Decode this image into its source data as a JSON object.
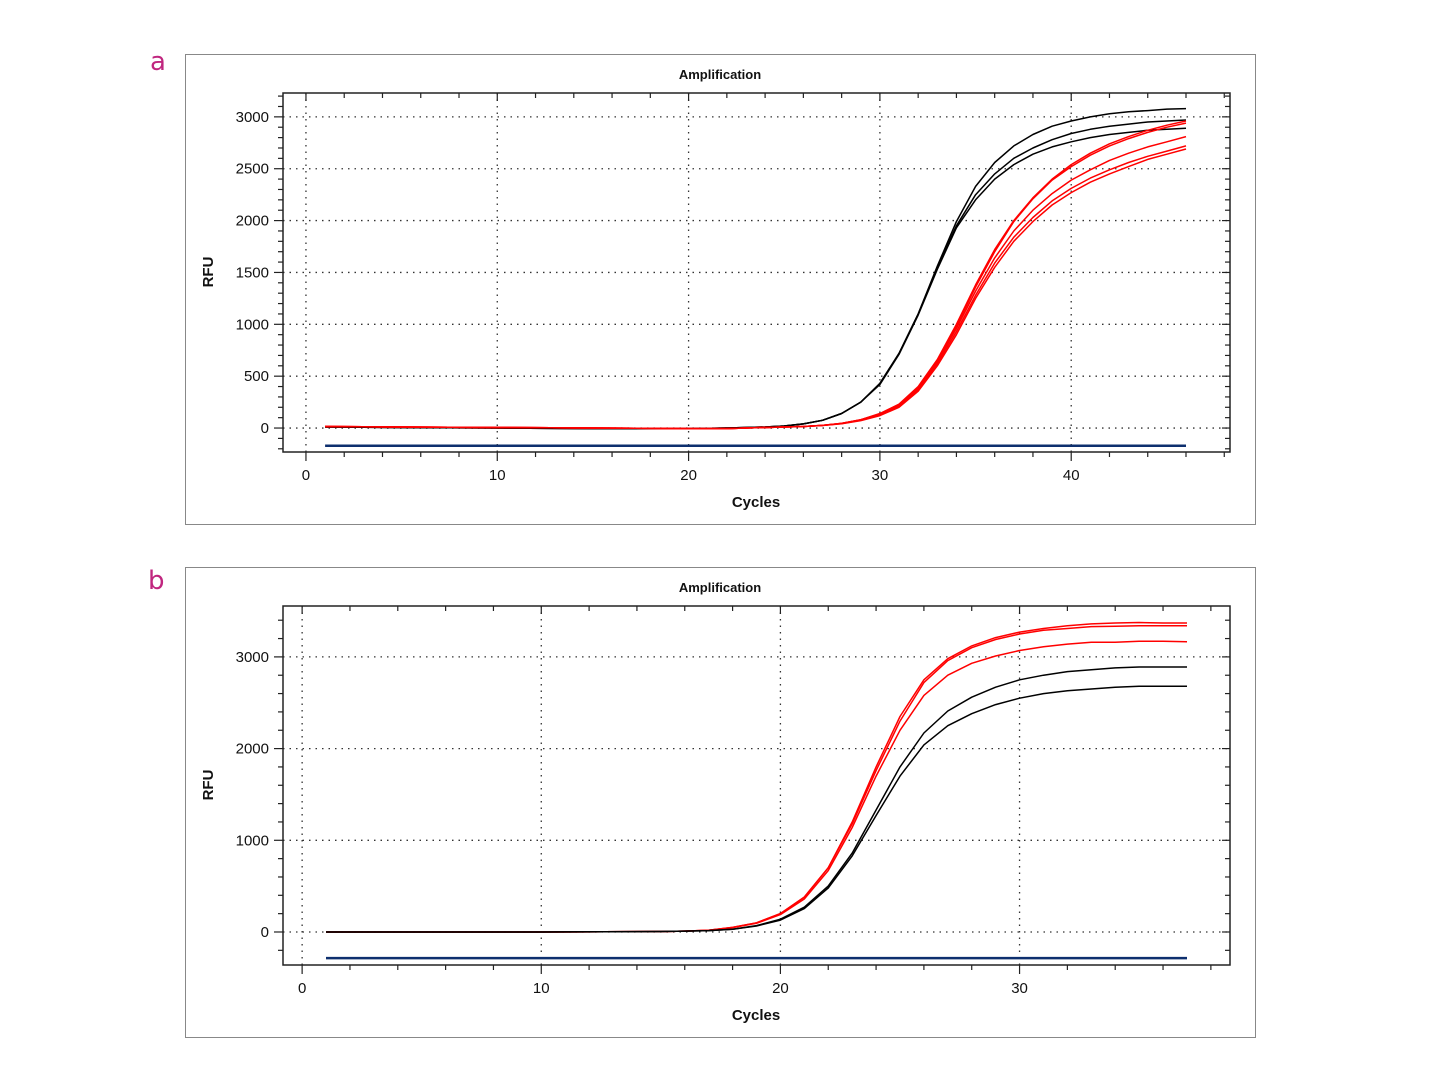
{
  "colors": {
    "panel_letter": "#c0267f",
    "black_series": "#000000",
    "red_series": "#ff0000",
    "baseline": "#0d2f6e"
  },
  "chart_data": [
    {
      "panel": "a",
      "type": "line",
      "title": "Amplification",
      "xlabel": "Cycles",
      "ylabel": "RFU",
      "xlim": [
        -1.2,
        48.3
      ],
      "ylim": [
        -231,
        3230
      ],
      "xticks": [
        0,
        10,
        20,
        30,
        40
      ],
      "yticks": [
        0,
        500,
        1000,
        1500,
        2000,
        2500,
        3000
      ],
      "x_minor_step": 2,
      "y_minor_step": 100,
      "grid": true,
      "x": [
        1,
        5,
        10,
        15,
        20,
        22,
        23,
        24,
        25,
        26,
        27,
        28,
        29,
        30,
        31,
        32,
        33,
        34,
        35,
        36,
        37,
        38,
        39,
        40,
        41,
        42,
        43,
        44,
        45,
        46
      ],
      "series": [
        {
          "color": "#000000",
          "values": [
            10,
            5,
            0,
            -5,
            -5,
            0,
            5,
            10,
            20,
            40,
            75,
            140,
            250,
            430,
            720,
            1100,
            1560,
            1990,
            2330,
            2560,
            2720,
            2830,
            2910,
            2960,
            3000,
            3030,
            3050,
            3060,
            3075,
            3080
          ]
        },
        {
          "color": "#000000",
          "values": [
            10,
            5,
            0,
            -5,
            -5,
            0,
            5,
            10,
            20,
            40,
            75,
            140,
            250,
            430,
            720,
            1100,
            1550,
            1950,
            2250,
            2450,
            2600,
            2700,
            2780,
            2840,
            2880,
            2910,
            2930,
            2950,
            2960,
            2970
          ]
        },
        {
          "color": "#000000",
          "values": [
            10,
            5,
            0,
            -5,
            -5,
            0,
            5,
            10,
            20,
            40,
            75,
            140,
            250,
            420,
            710,
            1090,
            1530,
            1930,
            2200,
            2400,
            2540,
            2640,
            2710,
            2760,
            2800,
            2830,
            2850,
            2870,
            2880,
            2890
          ]
        },
        {
          "color": "#ff0000",
          "values": [
            15,
            10,
            5,
            0,
            -5,
            -5,
            0,
            5,
            10,
            15,
            25,
            45,
            80,
            140,
            230,
            400,
            660,
            1000,
            1380,
            1720,
            2000,
            2220,
            2400,
            2540,
            2650,
            2740,
            2810,
            2870,
            2920,
            2960
          ]
        },
        {
          "color": "#ff0000",
          "values": [
            15,
            10,
            5,
            0,
            -5,
            -5,
            0,
            5,
            10,
            15,
            25,
            45,
            80,
            135,
            225,
            390,
            650,
            980,
            1360,
            1700,
            1990,
            2210,
            2390,
            2520,
            2630,
            2720,
            2790,
            2850,
            2900,
            2940
          ]
        },
        {
          "color": "#ff0000",
          "values": [
            15,
            10,
            5,
            0,
            -5,
            -5,
            0,
            5,
            10,
            15,
            25,
            45,
            78,
            130,
            220,
            380,
            640,
            960,
            1320,
            1640,
            1900,
            2100,
            2260,
            2390,
            2490,
            2580,
            2650,
            2710,
            2760,
            2810
          ]
        },
        {
          "color": "#ff0000",
          "values": [
            15,
            10,
            5,
            0,
            -5,
            -5,
            0,
            5,
            10,
            15,
            25,
            43,
            75,
            125,
            210,
            370,
            620,
            930,
            1280,
            1590,
            1840,
            2030,
            2190,
            2310,
            2410,
            2490,
            2560,
            2620,
            2670,
            2720
          ]
        },
        {
          "color": "#ff0000",
          "values": [
            15,
            10,
            5,
            0,
            -5,
            -5,
            0,
            5,
            10,
            15,
            24,
            42,
            72,
            120,
            200,
            355,
            600,
            900,
            1250,
            1550,
            1800,
            1990,
            2150,
            2270,
            2370,
            2450,
            2520,
            2590,
            2640,
            2690
          ]
        },
        {
          "color": "#0d2f6e",
          "x": [
            1,
            46
          ],
          "values": [
            -170,
            -170
          ]
        }
      ]
    },
    {
      "panel": "b",
      "type": "line",
      "title": "Amplification",
      "xlabel": "Cycles",
      "ylabel": "RFU",
      "xlim": [
        -0.8,
        38.8
      ],
      "ylim": [
        -360,
        3555
      ],
      "xticks": [
        0,
        10,
        20,
        30
      ],
      "yticks": [
        0,
        1000,
        2000,
        3000
      ],
      "x_minor_step": 2,
      "y_minor_step": 200,
      "grid": true,
      "x": [
        1,
        5,
        10,
        15,
        16,
        17,
        18,
        19,
        20,
        21,
        22,
        23,
        24,
        25,
        26,
        27,
        28,
        29,
        30,
        31,
        32,
        33,
        34,
        35,
        36,
        37
      ],
      "series": [
        {
          "color": "#ff0000",
          "values": [
            0,
            0,
            0,
            5,
            10,
            20,
            50,
            100,
            200,
            380,
            700,
            1200,
            1800,
            2350,
            2750,
            2980,
            3120,
            3210,
            3270,
            3310,
            3340,
            3360,
            3370,
            3375,
            3370,
            3370
          ]
        },
        {
          "color": "#ff0000",
          "values": [
            0,
            0,
            0,
            5,
            10,
            20,
            50,
            100,
            200,
            380,
            700,
            1180,
            1760,
            2300,
            2720,
            2960,
            3100,
            3190,
            3250,
            3290,
            3310,
            3330,
            3335,
            3340,
            3340,
            3340
          ]
        },
        {
          "color": "#ff0000",
          "values": [
            0,
            0,
            0,
            5,
            10,
            20,
            48,
            95,
            190,
            360,
            670,
            1140,
            1700,
            2200,
            2580,
            2800,
            2930,
            3010,
            3070,
            3110,
            3140,
            3160,
            3160,
            3170,
            3170,
            3165
          ]
        },
        {
          "color": "#000000",
          "values": [
            0,
            0,
            0,
            5,
            10,
            15,
            30,
            70,
            140,
            270,
            500,
            860,
            1330,
            1800,
            2170,
            2410,
            2560,
            2670,
            2750,
            2800,
            2840,
            2860,
            2880,
            2890,
            2890,
            2890
          ]
        },
        {
          "color": "#000000",
          "values": [
            0,
            0,
            0,
            5,
            10,
            15,
            30,
            65,
            130,
            255,
            480,
            830,
            1270,
            1700,
            2040,
            2250,
            2380,
            2480,
            2550,
            2600,
            2630,
            2650,
            2670,
            2680,
            2680,
            2680
          ]
        },
        {
          "color": "#0d2f6e",
          "x": [
            1,
            37
          ],
          "values": [
            -285,
            -285
          ]
        }
      ]
    }
  ]
}
